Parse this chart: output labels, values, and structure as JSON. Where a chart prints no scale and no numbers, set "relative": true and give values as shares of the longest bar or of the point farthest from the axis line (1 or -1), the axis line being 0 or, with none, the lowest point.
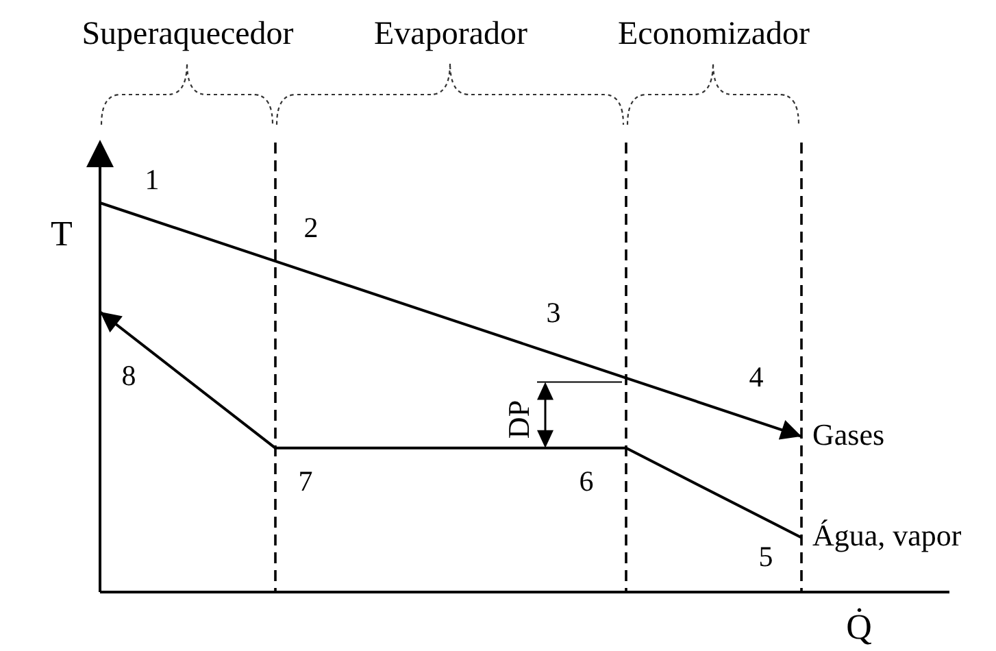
{
  "chart_data": {
    "type": "line",
    "relative": true,
    "xlabel": "Q̇",
    "ylabel": "T",
    "line_style": "solid",
    "grid": "x",
    "categories": [
      null,
      null,
      null,
      null,
      null
    ],
    "series": [
      {
        "name": "Gases",
        "color": "#000000",
        "values": [
          1,
          0.85,
          0.7,
          0.55,
          0.4
        ]
      },
      {
        "name": "Água, vapor",
        "color": "#000000",
        "values": [
          0.72,
          0.37,
          0.37,
          0.37,
          0.14
        ]
      }
    ],
    "annotations": [
      "Superaquecedor",
      "Evaporador",
      "Economizador",
      "1",
      "2",
      "3",
      "4",
      "5",
      "6",
      "7",
      "8",
      "DP"
    ]
  }
}
